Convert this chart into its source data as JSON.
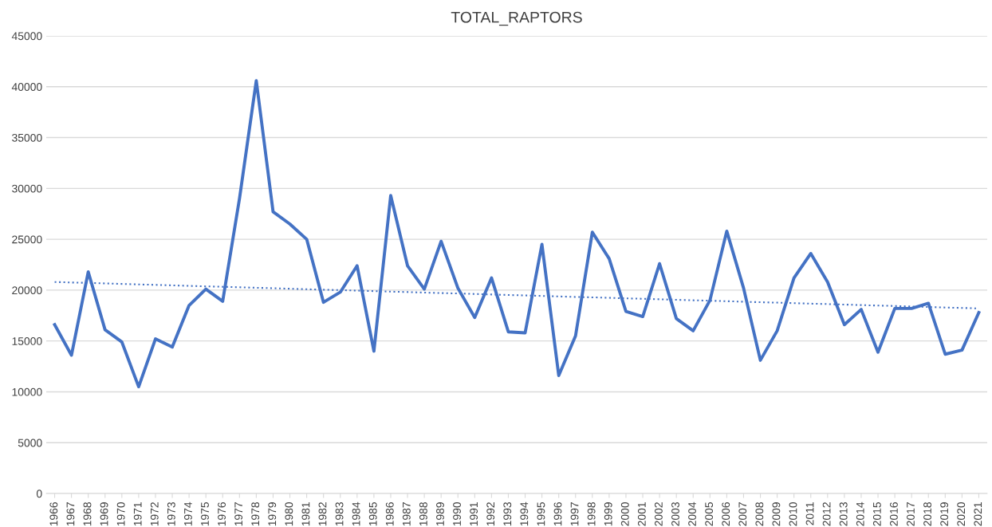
{
  "chart_data": {
    "type": "line",
    "title": "TOTAL_RAPTORS",
    "categories": [
      "1966",
      "1967",
      "1968",
      "1969",
      "1970",
      "1971",
      "1972",
      "1973",
      "1974",
      "1975",
      "1976",
      "1977",
      "1978",
      "1979",
      "1980",
      "1981",
      "1982",
      "1983",
      "1984",
      "1985",
      "1986",
      "1987",
      "1988",
      "1989",
      "1990",
      "1991",
      "1992",
      "1993",
      "1994",
      "1995",
      "1996",
      "1997",
      "1998",
      "1999",
      "2000",
      "2001",
      "2002",
      "2003",
      "2004",
      "2005",
      "2006",
      "2007",
      "2008",
      "2009",
      "2010",
      "2011",
      "2012",
      "2013",
      "2014",
      "2015",
      "2016",
      "2017",
      "2018",
      "2019",
      "2020",
      "2021"
    ],
    "series": [
      {
        "color": "#4472c4",
        "values": [
          16600,
          13600,
          21800,
          16100,
          14900,
          10500,
          15200,
          14400,
          18500,
          20100,
          18900,
          29000,
          40600,
          27700,
          26500,
          25000,
          18800,
          19800,
          22400,
          14000,
          29300,
          22400,
          20100,
          24800,
          20200,
          17300,
          21200,
          15900,
          15800,
          24500,
          11600,
          15500,
          25700,
          23100,
          17900,
          17400,
          22600,
          17200,
          16000,
          19000,
          25800,
          20200,
          13100,
          16000,
          21200,
          23600,
          20800,
          16600,
          18100,
          13900,
          18200,
          18200,
          18700,
          13700,
          14100,
          17800
        ]
      },
      {
        "type": "line",
        "color": "#4472c4",
        "line_style": "dotted",
        "values": [
          20800,
          20750,
          20710,
          20660,
          20610,
          20560,
          20520,
          20470,
          20420,
          20370,
          20330,
          20280,
          20230,
          20190,
          20140,
          20090,
          20040,
          20000,
          19950,
          19900,
          19850,
          19810,
          19760,
          19710,
          19670,
          19620,
          19570,
          19520,
          19480,
          19430,
          19380,
          19330,
          19290,
          19240,
          19190,
          19150,
          19100,
          19050,
          19000,
          18960,
          18910,
          18860,
          18810,
          18770,
          18720,
          18670,
          18630,
          18580,
          18530,
          18480,
          18440,
          18390,
          18340,
          18290,
          18250,
          18200
        ]
      }
    ],
    "ylim": [
      0,
      45000
    ],
    "yticks": [
      0,
      5000,
      10000,
      15000,
      20000,
      25000,
      30000,
      35000,
      40000,
      45000
    ],
    "grid": "y",
    "legend": false,
    "marker": "none",
    "line_style": "solid"
  }
}
